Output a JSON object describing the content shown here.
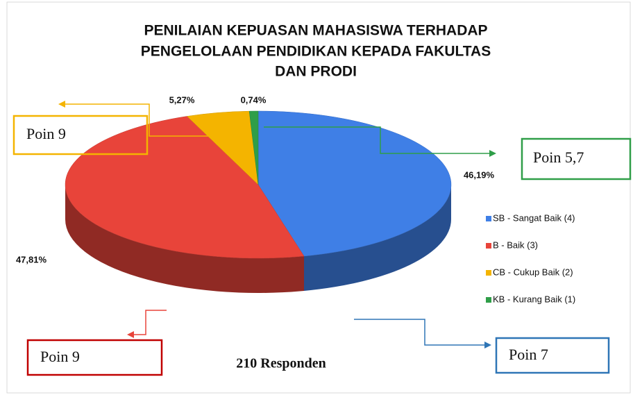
{
  "chart_data": {
    "type": "pie3d",
    "title": [
      "PENILAIAN KEPUASAN  MAHASISWA TERHADAP",
      "PENGELOLAAN PENDIDIKAN KEPADA FAKULTAS",
      "DAN PRODI"
    ],
    "categories": [
      "SB - Sangat Baik (4)",
      "B - Baik (3)",
      "CB - Cukup Baik (2)",
      "KB - Kurang Baik (1)"
    ],
    "values": [
      46.19,
      47.81,
      5.27,
      0.74
    ],
    "value_labels": [
      "46,19%",
      "47,81%",
      "5,27%",
      "0,74%"
    ],
    "colors": [
      "#3f7fe6",
      "#e8443a",
      "#f4b400",
      "#2f9e48"
    ],
    "legend": "right",
    "annotations": [
      "Poin 7",
      "Poin 9",
      "Poin 9",
      "Poin 5,7"
    ],
    "subtitle": "210 Responden"
  }
}
